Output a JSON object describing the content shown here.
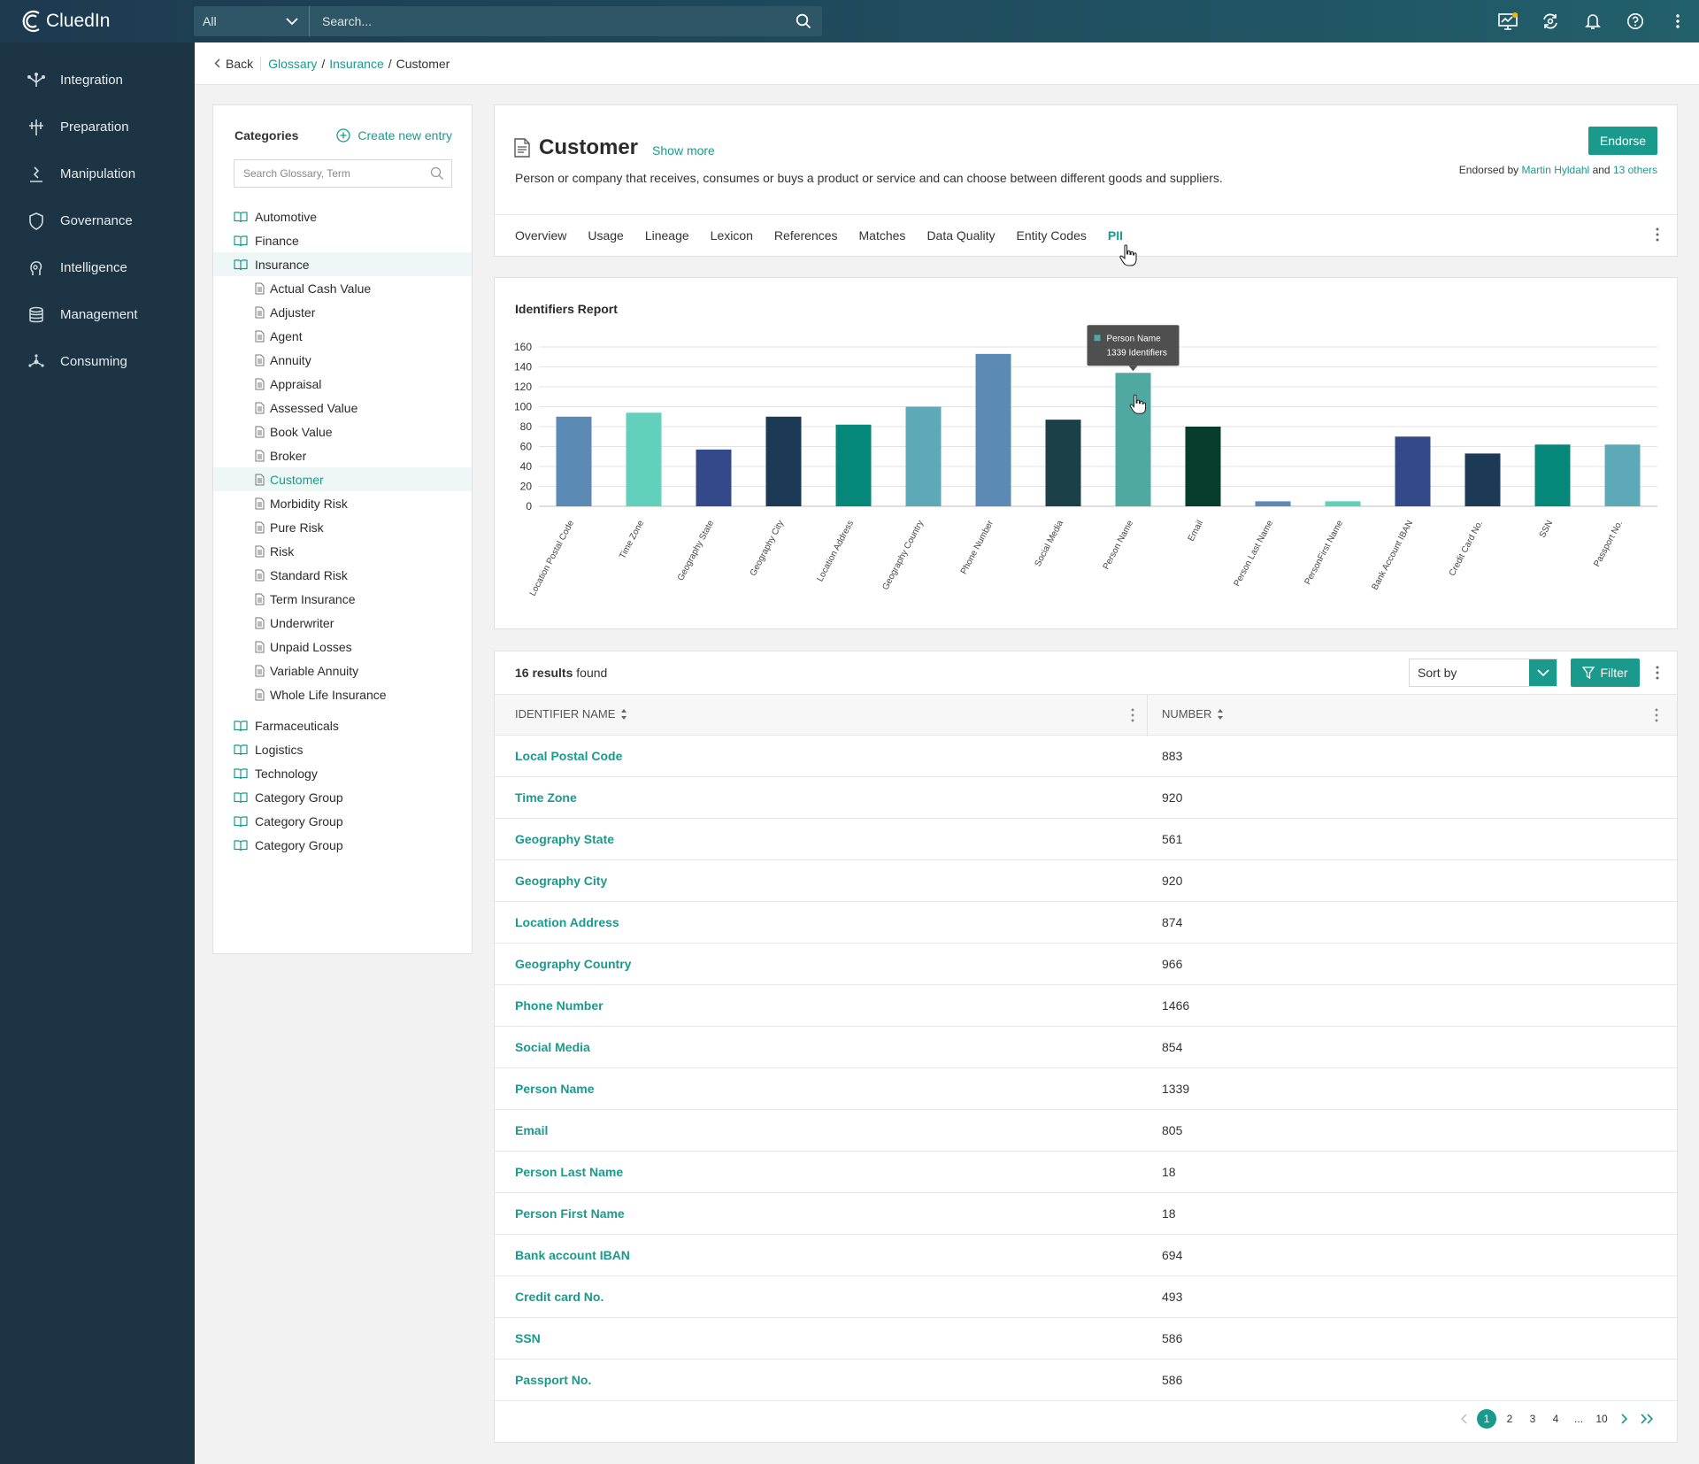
{
  "app": {
    "logo_text": "CluedIn",
    "search_scope": "All",
    "search_placeholder": "Search..."
  },
  "nav": {
    "items": [
      {
        "label": "Integration",
        "icon": "integration-icon"
      },
      {
        "label": "Preparation",
        "icon": "preparation-icon"
      },
      {
        "label": "Manipulation",
        "icon": "manipulation-icon"
      },
      {
        "label": "Governance",
        "icon": "governance-icon"
      },
      {
        "label": "Intelligence",
        "icon": "intelligence-icon"
      },
      {
        "label": "Management",
        "icon": "management-icon"
      },
      {
        "label": "Consuming",
        "icon": "consuming-icon"
      }
    ]
  },
  "breadcrumb": {
    "back": "Back",
    "items": [
      "Glossary",
      "Insurance"
    ],
    "current": "Customer"
  },
  "categories": {
    "heading": "Categories",
    "create_label": "Create new entry",
    "search_placeholder": "Search Glossary, Term",
    "top": [
      "Automotive",
      "Finance",
      "Insurance"
    ],
    "insurance_terms": [
      "Actual Cash Value",
      "Adjuster",
      "Agent",
      "Annuity",
      "Appraisal",
      "Assessed Value",
      "Book Value",
      "Broker",
      "Customer",
      "Morbidity Risk",
      "Pure Risk",
      "Risk",
      "Standard Risk",
      "Term Insurance",
      "Underwriter",
      "Unpaid Losses",
      "Variable Annuity",
      "Whole Life Insurance"
    ],
    "bottom": [
      "Farmaceuticals",
      "Logistics",
      "Technology",
      "Category Group",
      "Category Group",
      "Category Group"
    ]
  },
  "term": {
    "title": "Customer",
    "show_more": "Show more",
    "description": "Person or company that receives, consumes or buys a product or service and can choose between different goods and suppliers.",
    "endorse_label": "Endorse",
    "endorsed_prefix": "Endorsed by",
    "endorsed_by": "Martin Hyldahl",
    "endorsed_and": "and",
    "endorsed_others": "13 others"
  },
  "tabs": [
    "Overview",
    "Usage",
    "Lineage",
    "Lexicon",
    "References",
    "Matches",
    "Data Quality",
    "Entity Codes",
    "PII"
  ],
  "active_tab": "PII",
  "chart_data": {
    "type": "bar",
    "title": "Identifiers Report",
    "categories": [
      "Location Postal Code",
      "Time Zone",
      "Geography State",
      "Geography City",
      "Location Address",
      "Geography Country",
      "Phone Number",
      "Social Media",
      "Person Name",
      "Email",
      "Person Last Name",
      "PersonFirst Name",
      "Bank Account IBAN",
      "Credit Card No.",
      "SSN",
      "Passport No."
    ],
    "values": [
      90,
      94,
      57,
      90,
      82,
      100,
      153,
      87,
      134,
      80,
      5,
      5,
      70,
      53,
      62,
      62
    ],
    "colors": [
      "#5b8bb5",
      "#62d0bb",
      "#34498a",
      "#1c3a55",
      "#05877a",
      "#5ea9b8",
      "#5b8bb5",
      "#1c4048",
      "#4fa9a0",
      "#083c2c",
      "#5b8bb5",
      "#62d0bb",
      "#34498a",
      "#1c3a55",
      "#05877a",
      "#5ea9b8"
    ],
    "ylim": [
      0,
      160
    ],
    "yticks": [
      0,
      20,
      40,
      60,
      80,
      100,
      120,
      140,
      160
    ],
    "grid": true,
    "tooltip": {
      "series": "Person Name",
      "text": "1339 Identifiers"
    }
  },
  "table": {
    "count": "16 results",
    "found": "found",
    "sort_label": "Sort by",
    "filter_label": "Filter",
    "col_name": "IDENTIFIER NAME",
    "col_number": "NUMBER",
    "rows": [
      {
        "name": "Local Postal Code",
        "number": "883"
      },
      {
        "name": "Time Zone",
        "number": "920"
      },
      {
        "name": "Geography State",
        "number": "561"
      },
      {
        "name": "Geography City",
        "number": "920"
      },
      {
        "name": "Location Address",
        "number": "874"
      },
      {
        "name": "Geography Country",
        "number": "966"
      },
      {
        "name": "Phone Number",
        "number": "1466"
      },
      {
        "name": "Social Media",
        "number": "854"
      },
      {
        "name": "Person Name",
        "number": "1339"
      },
      {
        "name": "Email",
        "number": "805"
      },
      {
        "name": "Person Last Name",
        "number": "18"
      },
      {
        "name": "Person First Name",
        "number": "18"
      },
      {
        "name": "Bank account IBAN",
        "number": "694"
      },
      {
        "name": "Credit card No.",
        "number": "493"
      },
      {
        "name": "SSN",
        "number": "586"
      },
      {
        "name": "Passport No.",
        "number": "586"
      }
    ]
  },
  "pagination": {
    "pages": [
      "1",
      "2",
      "3",
      "4",
      "...",
      "10"
    ],
    "current": "1"
  }
}
